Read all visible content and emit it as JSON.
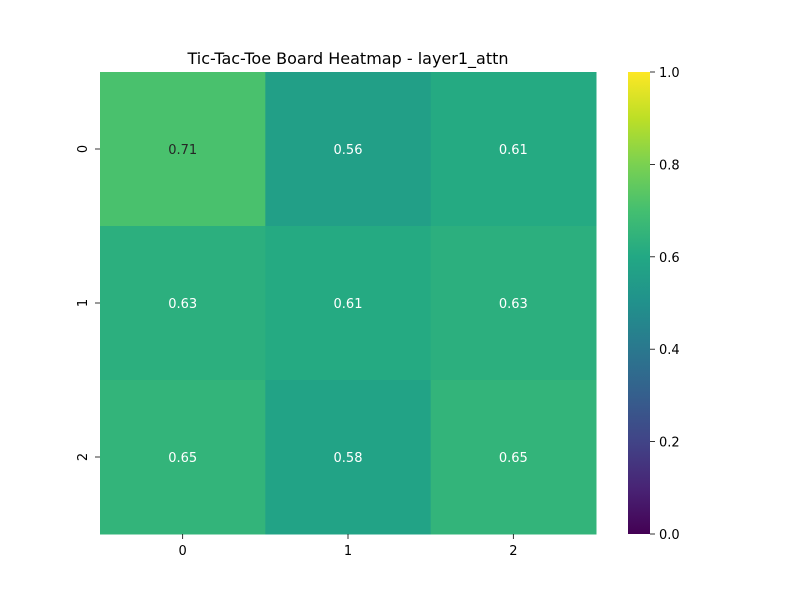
{
  "chart_data": {
    "type": "heatmap",
    "title": "Tic-Tac-Toe Board Heatmap - layer1_attn",
    "xlabel": "",
    "ylabel": "",
    "x_categories": [
      "0",
      "1",
      "2"
    ],
    "y_categories": [
      "0",
      "1",
      "2"
    ],
    "values": [
      [
        0.71,
        0.56,
        0.61
      ],
      [
        0.63,
        0.61,
        0.63
      ],
      [
        0.65,
        0.58,
        0.65
      ]
    ],
    "annotations": [
      [
        "0.71",
        "0.56",
        "0.61"
      ],
      [
        "0.63",
        "0.61",
        "0.63"
      ],
      [
        "0.65",
        "0.58",
        "0.65"
      ]
    ],
    "colormap": "viridis",
    "vmin": 0.0,
    "vmax": 1.0,
    "colorbar": {
      "ticks": [
        0.0,
        0.2,
        0.4,
        0.6,
        0.8,
        1.0
      ],
      "tick_labels": [
        "0.0",
        "0.2",
        "0.4",
        "0.6",
        "0.8",
        "1.0"
      ]
    },
    "grid": false
  }
}
